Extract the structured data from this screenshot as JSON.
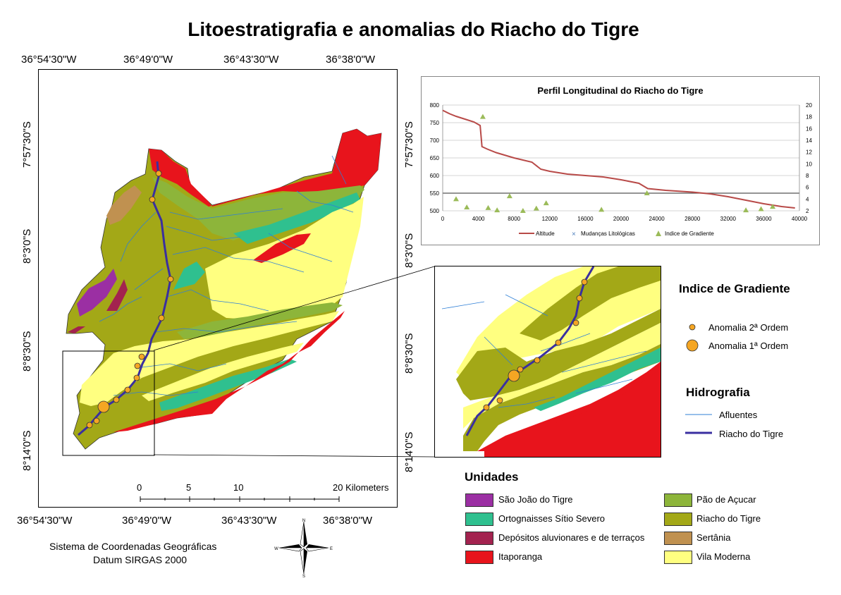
{
  "title": "Litoestratigrafia e anomalias do Riacho do Tigre",
  "map": {
    "top_ticks": [
      "36°54'30\"W",
      "36°49'0\"W",
      "36°43'30\"W",
      "36°38'0\"W"
    ],
    "bottom_ticks": [
      "36°54'30\"W",
      "36°49'0\"W",
      "36°43'30\"W",
      "36°38'0\"W"
    ],
    "left_ticks": [
      "7°57'30\"S",
      "8°3'0\"S",
      "8°8'30\"S",
      "8°14'0\"S"
    ],
    "right_ticks": [
      "7°57'30\"S",
      "8°3'0\"S",
      "8°8'30\"S",
      "8°14'0\"S"
    ],
    "scale_labels": [
      "0",
      "5",
      "10",
      "20 Kilometers"
    ],
    "crs_line1": "Sistema de Coordenadas Geográficas",
    "crs_line2": "Datum SIRGAS 2000",
    "compass": {
      "n": "N",
      "s": "S",
      "e": "E",
      "w": "W"
    }
  },
  "legend": {
    "gradiente_title": "Indice de Gradiente",
    "anomalia2": "Anomalia 2ª Ordem",
    "anomalia1": "Anomalia 1ª Ordem",
    "hidro_title": "Hidrografia",
    "afluentes": "Afluentes",
    "riacho": "Riacho do Tigre",
    "unidades_title": "Unidades",
    "units": [
      {
        "label": "São João do Tigre",
        "color": "#9b2fa3"
      },
      {
        "label": "Ortognaisses Sítio Severo",
        "color": "#2fc08f"
      },
      {
        "label": "Depósitos aluvionares e de terraços",
        "color": "#a3234f"
      },
      {
        "label": "Itaporanga",
        "color": "#e8141c"
      },
      {
        "label": "Pão de Açucar",
        "color": "#8db53a"
      },
      {
        "label": "Riacho do Tigre",
        "color": "#a3a817"
      },
      {
        "label": "Sertânia",
        "color": "#c09150"
      },
      {
        "label": "Vila Moderna",
        "color": "#ffff80"
      }
    ]
  },
  "colors": {
    "river": "#3a2fa0",
    "tributary": "#2f7fd6",
    "anomaly": "#f5a623",
    "altitude_line": "#b84a48",
    "gradient_marker": "#9bbb59",
    "lito_marker": "#4f81bd"
  },
  "chart_data": {
    "type": "line",
    "title": "Perfil Longitudinal do Riacho do Tigre",
    "xlim": [
      0,
      40000
    ],
    "ylim": [
      500,
      800
    ],
    "y2lim": [
      2,
      20
    ],
    "x_ticks": [
      "0",
      "4000",
      "8000",
      "12000",
      "16000",
      "20000",
      "24000",
      "28000",
      "32000",
      "36000",
      "40000"
    ],
    "y_ticks": [
      "500",
      "550",
      "600",
      "650",
      "700",
      "750",
      "800"
    ],
    "y2_ticks": [
      "2",
      "4",
      "6",
      "8",
      "10",
      "12",
      "14",
      "16",
      "18",
      "20"
    ],
    "series": [
      {
        "name": "Altitude",
        "x": [
          0,
          800,
          1500,
          2500,
          3500,
          4200,
          4400,
          5000,
          6000,
          8000,
          10000,
          11000,
          12000,
          14000,
          16000,
          18000,
          20000,
          22000,
          23000,
          25000,
          28000,
          30000,
          32000,
          34000,
          36000,
          38000,
          39500
        ],
        "y": [
          785,
          775,
          768,
          760,
          752,
          742,
          682,
          675,
          665,
          650,
          638,
          618,
          612,
          604,
          600,
          596,
          588,
          578,
          563,
          558,
          553,
          548,
          540,
          530,
          520,
          512,
          508
        ]
      },
      {
        "name": "Mudanças Litológicas",
        "x": [],
        "y": []
      },
      {
        "name": "Indice de Gradiente",
        "x": [
          1500,
          2700,
          4500,
          5100,
          6100,
          7500,
          9000,
          10500,
          11600,
          17800,
          22900,
          34000,
          35700,
          37000
        ],
        "y": [
          4,
          2.6,
          18,
          2.5,
          2.1,
          4.5,
          2,
          2.4,
          3.3,
          2.2,
          5,
          2.1,
          2.3,
          2.7
        ]
      }
    ]
  }
}
